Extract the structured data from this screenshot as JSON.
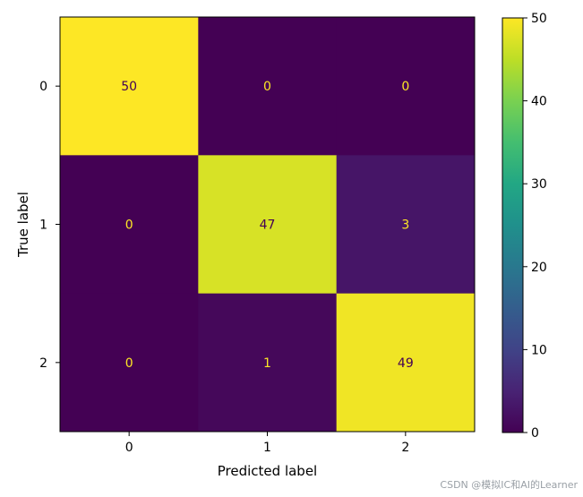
{
  "chart_data": {
    "type": "heatmap",
    "title": "",
    "xlabel": "Predicted label",
    "ylabel": "True label",
    "x_categories": [
      "0",
      "1",
      "2"
    ],
    "y_categories": [
      "0",
      "1",
      "2"
    ],
    "matrix": [
      [
        50,
        0,
        0
      ],
      [
        0,
        47,
        3
      ],
      [
        0,
        1,
        49
      ]
    ],
    "colormap": "viridis",
    "colorbar": {
      "range": [
        0,
        50
      ],
      "ticks": [
        0,
        10,
        20,
        30,
        40,
        50
      ]
    },
    "text_colors": {
      "on_dark": "#fde725",
      "on_light": "#440154"
    }
  },
  "watermark": "CSDN @模拟IC和AI的Learner"
}
